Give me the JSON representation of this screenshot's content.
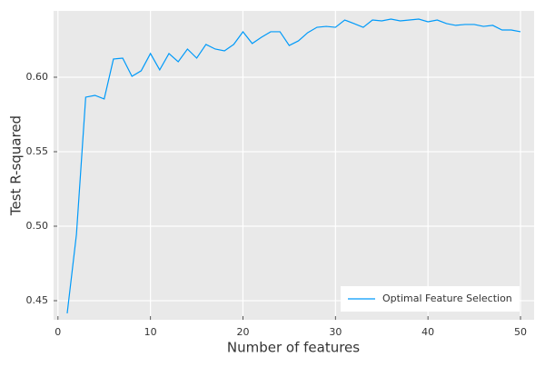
{
  "chart_data": {
    "type": "line",
    "xlabel": "Number of features",
    "ylabel": "Test R-squared",
    "x": [
      1,
      2,
      3,
      4,
      5,
      6,
      7,
      8,
      9,
      10,
      11,
      12,
      13,
      14,
      15,
      16,
      17,
      18,
      19,
      20,
      21,
      22,
      23,
      24,
      25,
      26,
      27,
      28,
      29,
      30,
      31,
      32,
      33,
      34,
      35,
      36,
      37,
      38,
      39,
      40,
      41,
      42,
      43,
      44,
      45,
      46,
      47,
      48,
      49,
      50
    ],
    "series": [
      {
        "name": "Optimal Feature Selection",
        "color": "#009af9",
        "values": [
          0.4415,
          0.4945,
          0.5866,
          0.5878,
          0.5854,
          0.6122,
          0.6128,
          0.6006,
          0.6043,
          0.6159,
          0.6049,
          0.6159,
          0.6104,
          0.6189,
          0.6128,
          0.622,
          0.6189,
          0.6177,
          0.622,
          0.6305,
          0.6226,
          0.6268,
          0.6305,
          0.6305,
          0.6213,
          0.6244,
          0.6299,
          0.6335,
          0.6341,
          0.6335,
          0.6384,
          0.636,
          0.6335,
          0.6384,
          0.6378,
          0.639,
          0.6378,
          0.6384,
          0.639,
          0.6372,
          0.6384,
          0.636,
          0.6348,
          0.6354,
          0.6354,
          0.6341,
          0.6348,
          0.6317,
          0.6317,
          0.6305
        ]
      }
    ],
    "xlim": [
      -0.47,
      51.47
    ],
    "ylim": [
      0.4372,
      0.6445
    ],
    "xticks": [
      0,
      10,
      20,
      30,
      40,
      50
    ],
    "yticks": [
      0.45,
      {
        "value": 0.5,
        "label": "0.50"
      },
      0.55,
      {
        "value": 0.6,
        "label": "0.60"
      }
    ],
    "grid": true,
    "legend": "bottom-right"
  }
}
